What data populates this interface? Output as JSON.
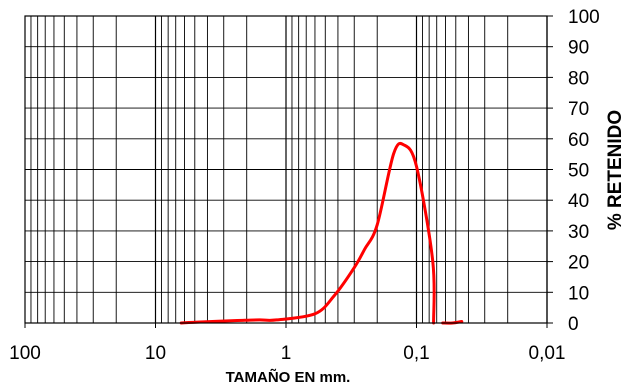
{
  "chart_data": {
    "type": "line",
    "title": "",
    "xlabel": "TAMAÑO EN mm.",
    "ylabel": "% RETENIDO",
    "x_scale": "log",
    "x_reversed": true,
    "xlim": [
      100,
      0.01
    ],
    "ylim": [
      0,
      100
    ],
    "grid": true,
    "x_tick_values": [
      100,
      10,
      1,
      0.1,
      0.01
    ],
    "x_tick_labels": [
      "100",
      "10",
      "1",
      "0,1",
      "0,01"
    ],
    "y_tick_values": [
      0,
      10,
      20,
      30,
      40,
      50,
      60,
      70,
      80,
      90,
      100
    ],
    "y_tick_labels": [
      "0",
      "10",
      "20",
      "30",
      "40",
      "50",
      "60",
      "70",
      "80",
      "90",
      "100"
    ],
    "y_axis_side": "right",
    "line_color": "#ff0000",
    "series": [
      {
        "x": [
          6.35,
          4.76,
          2.36,
          1.6,
          1.18,
          0.6,
          0.425,
          0.3,
          0.25,
          0.2,
          0.15,
          0.125,
          0.1,
          0.075,
          0.074
        ],
        "y": [
          0,
          0.3,
          0.8,
          1,
          1,
          3,
          9,
          18,
          24,
          32,
          55,
          58,
          51,
          20,
          0
        ]
      },
      {
        "x": [
          0.063,
          0.053,
          0.045
        ],
        "y": [
          0,
          0,
          0.5
        ]
      }
    ]
  }
}
